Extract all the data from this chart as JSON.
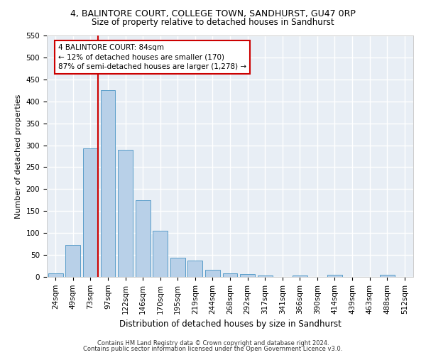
{
  "title1": "4, BALINTORE COURT, COLLEGE TOWN, SANDHURST, GU47 0RP",
  "title2": "Size of property relative to detached houses in Sandhurst",
  "xlabel": "Distribution of detached houses by size in Sandhurst",
  "ylabel": "Number of detached properties",
  "footnote1": "Contains HM Land Registry data © Crown copyright and database right 2024.",
  "footnote2": "Contains public sector information licensed under the Open Government Licence v3.0.",
  "bar_labels": [
    "24sqm",
    "49sqm",
    "73sqm",
    "97sqm",
    "122sqm",
    "146sqm",
    "170sqm",
    "195sqm",
    "219sqm",
    "244sqm",
    "268sqm",
    "292sqm",
    "317sqm",
    "341sqm",
    "366sqm",
    "390sqm",
    "414sqm",
    "439sqm",
    "463sqm",
    "488sqm",
    "512sqm"
  ],
  "bar_values": [
    8,
    72,
    293,
    425,
    290,
    175,
    105,
    44,
    38,
    16,
    8,
    6,
    4,
    0,
    3,
    0,
    5,
    0,
    0,
    5,
    0
  ],
  "bar_color": "#b8d0e8",
  "bar_edge_color": "#5a9ec9",
  "vline_color": "#cc0000",
  "vline_pos": 2.45,
  "annotation_line1": "4 BALINTORE COURT: 84sqm",
  "annotation_line2": "← 12% of detached houses are smaller (170)",
  "annotation_line3": "87% of semi-detached houses are larger (1,278) →",
  "annotation_box_color": "white",
  "annotation_box_edge": "#cc0000",
  "ylim": [
    0,
    550
  ],
  "yticks": [
    0,
    50,
    100,
    150,
    200,
    250,
    300,
    350,
    400,
    450,
    500,
    550
  ],
  "bg_color": "#e8eef5",
  "grid_color": "white",
  "title1_fontsize": 9,
  "title2_fontsize": 8.5,
  "xlabel_fontsize": 8.5,
  "ylabel_fontsize": 8,
  "tick_fontsize": 7.5,
  "annot_fontsize": 7.5,
  "footnote_fontsize": 6
}
